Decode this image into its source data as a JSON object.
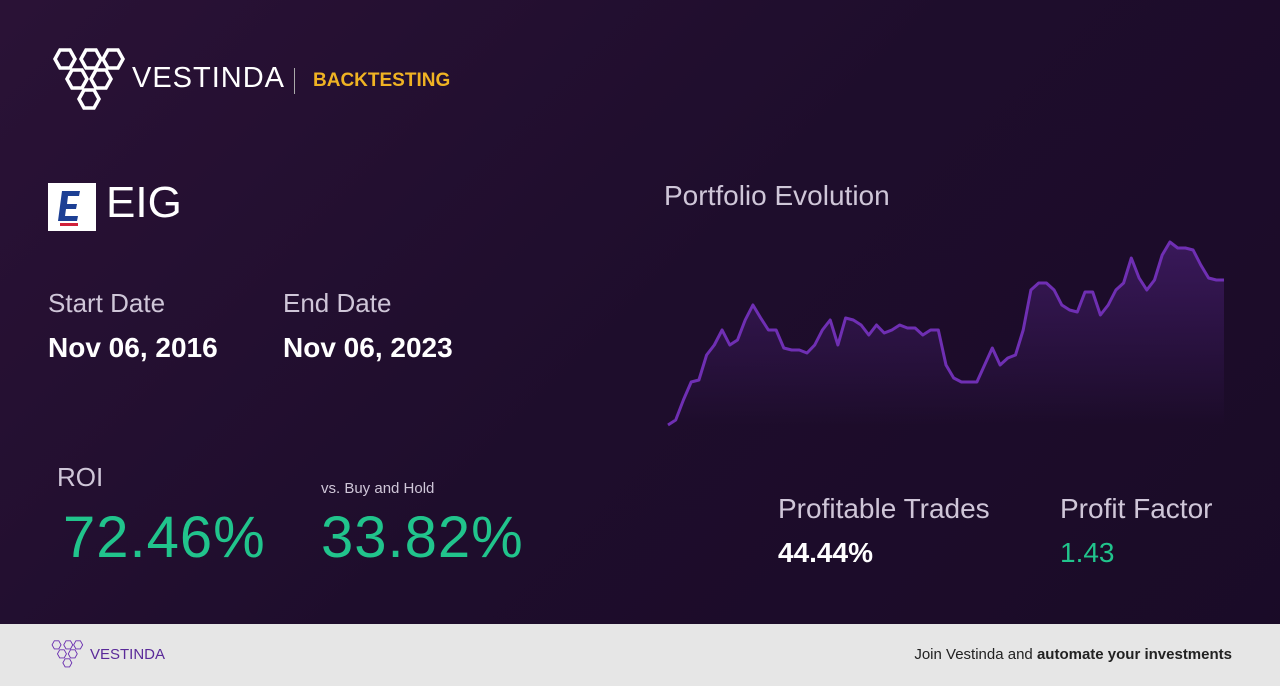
{
  "header": {
    "brand": "VESTINDA",
    "section": "BACKTESTING"
  },
  "ticker": "EIG",
  "start_date": {
    "label": "Start Date",
    "value": "Nov 06, 2016"
  },
  "end_date": {
    "label": "End Date",
    "value": "Nov 06, 2023"
  },
  "roi": {
    "label": "ROI",
    "value": "72.46%"
  },
  "vs_buy_hold": {
    "label": "vs. Buy and Hold",
    "value": "33.82%"
  },
  "profitable_trades": {
    "label": "Profitable Trades",
    "value": "44.44%"
  },
  "profit_factor": {
    "label": "Profit Factor",
    "value": "1.43"
  },
  "chart_data": {
    "type": "line",
    "title": "Portfolio Evolution",
    "color": "#6f2fb3",
    "values": [
      100,
      102.5,
      112.5,
      121.5,
      122.5,
      135,
      140,
      147.5,
      140,
      142.5,
      152.5,
      160,
      153.5,
      147.5,
      147.5,
      138.5,
      137.5,
      137.5,
      136,
      140,
      147.5,
      152.5,
      140,
      153.5,
      152.5,
      150,
      145,
      150,
      146,
      147.5,
      150,
      148.5,
      148.5,
      145,
      147.5,
      147.5,
      130,
      123.5,
      121.5,
      121.5,
      121.5,
      130,
      138.5,
      130,
      133.5,
      135,
      147.5,
      167.5,
      171,
      171,
      167.5,
      160,
      157.5,
      156.5,
      166.5,
      166.5,
      155,
      160,
      167.5,
      171,
      183.5,
      173.5,
      167.5,
      172.5,
      185,
      191.5,
      188.5,
      188.5,
      187.5,
      180,
      173.5,
      172.5,
      172.5
    ]
  },
  "footer": {
    "brand": "VESTINDA",
    "cta_prefix": "Join Vestinda and",
    "cta_bold": "automate your investments"
  }
}
